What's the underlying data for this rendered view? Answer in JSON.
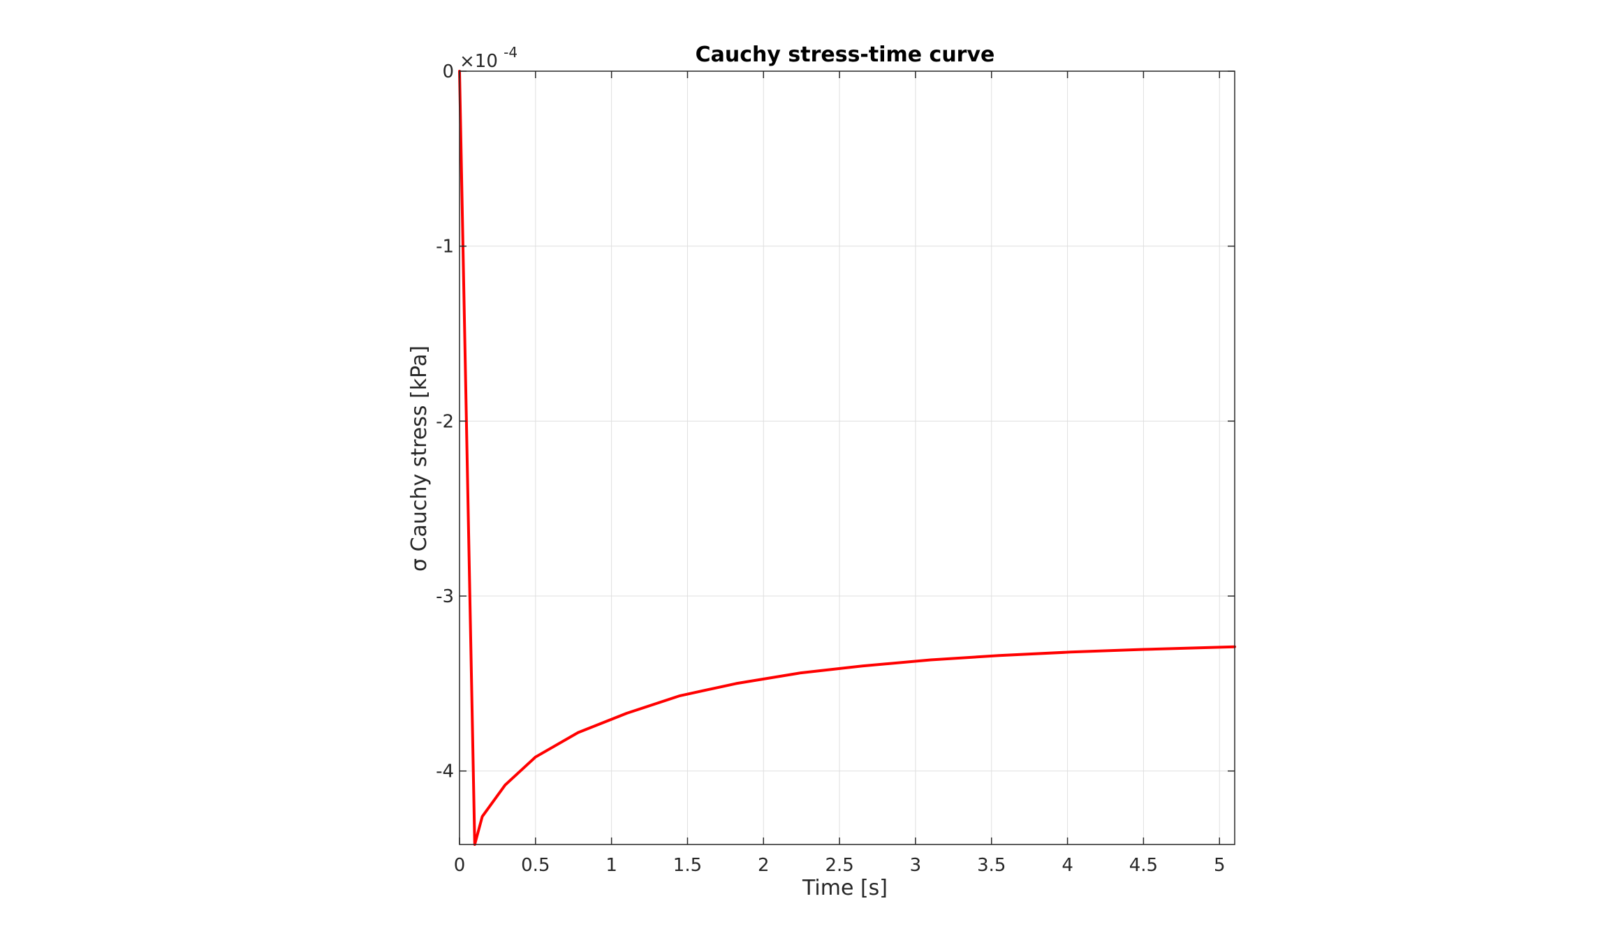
{
  "chart_data": {
    "type": "line",
    "title": "Cauchy stress-time curve",
    "xlabel": "Time [s]",
    "ylabel": "σ Cauchy stress [kPa]",
    "y_exponent_prefix": "×10",
    "y_exponent_power": "-4",
    "xlim": [
      0,
      5.1
    ],
    "ylim": [
      -4.42,
      0
    ],
    "y_scale_factor": 0.0001,
    "grid": true,
    "x_ticks": [
      0,
      0.5,
      1,
      1.5,
      2,
      2.5,
      3,
      3.5,
      4,
      4.5,
      5
    ],
    "x_tick_labels": [
      "0",
      "0.5",
      "1",
      "1.5",
      "2",
      "2.5",
      "3",
      "3.5",
      "4",
      "4.5",
      "5"
    ],
    "y_ticks": [
      0,
      -1,
      -2,
      -3,
      -4
    ],
    "y_tick_labels": [
      "0",
      "-1",
      "-2",
      "-3",
      "-4"
    ],
    "series": [
      {
        "color": "#ff0000",
        "x": [
          0,
          0.1,
          0.15,
          0.3,
          0.5,
          0.78,
          1.1,
          1.45,
          1.82,
          2.24,
          2.65,
          3.1,
          3.55,
          4.02,
          4.5,
          5.1
        ],
        "y": [
          0,
          -4.42,
          -4.26,
          -4.08,
          -3.92,
          -3.78,
          -3.67,
          -3.57,
          -3.5,
          -3.44,
          -3.4,
          -3.365,
          -3.34,
          -3.32,
          -3.305,
          -3.29
        ]
      }
    ]
  },
  "colors": {
    "axis": "#262626",
    "grid": "#dfdfdf",
    "background": "#ffffff",
    "line": "#ff0000"
  }
}
